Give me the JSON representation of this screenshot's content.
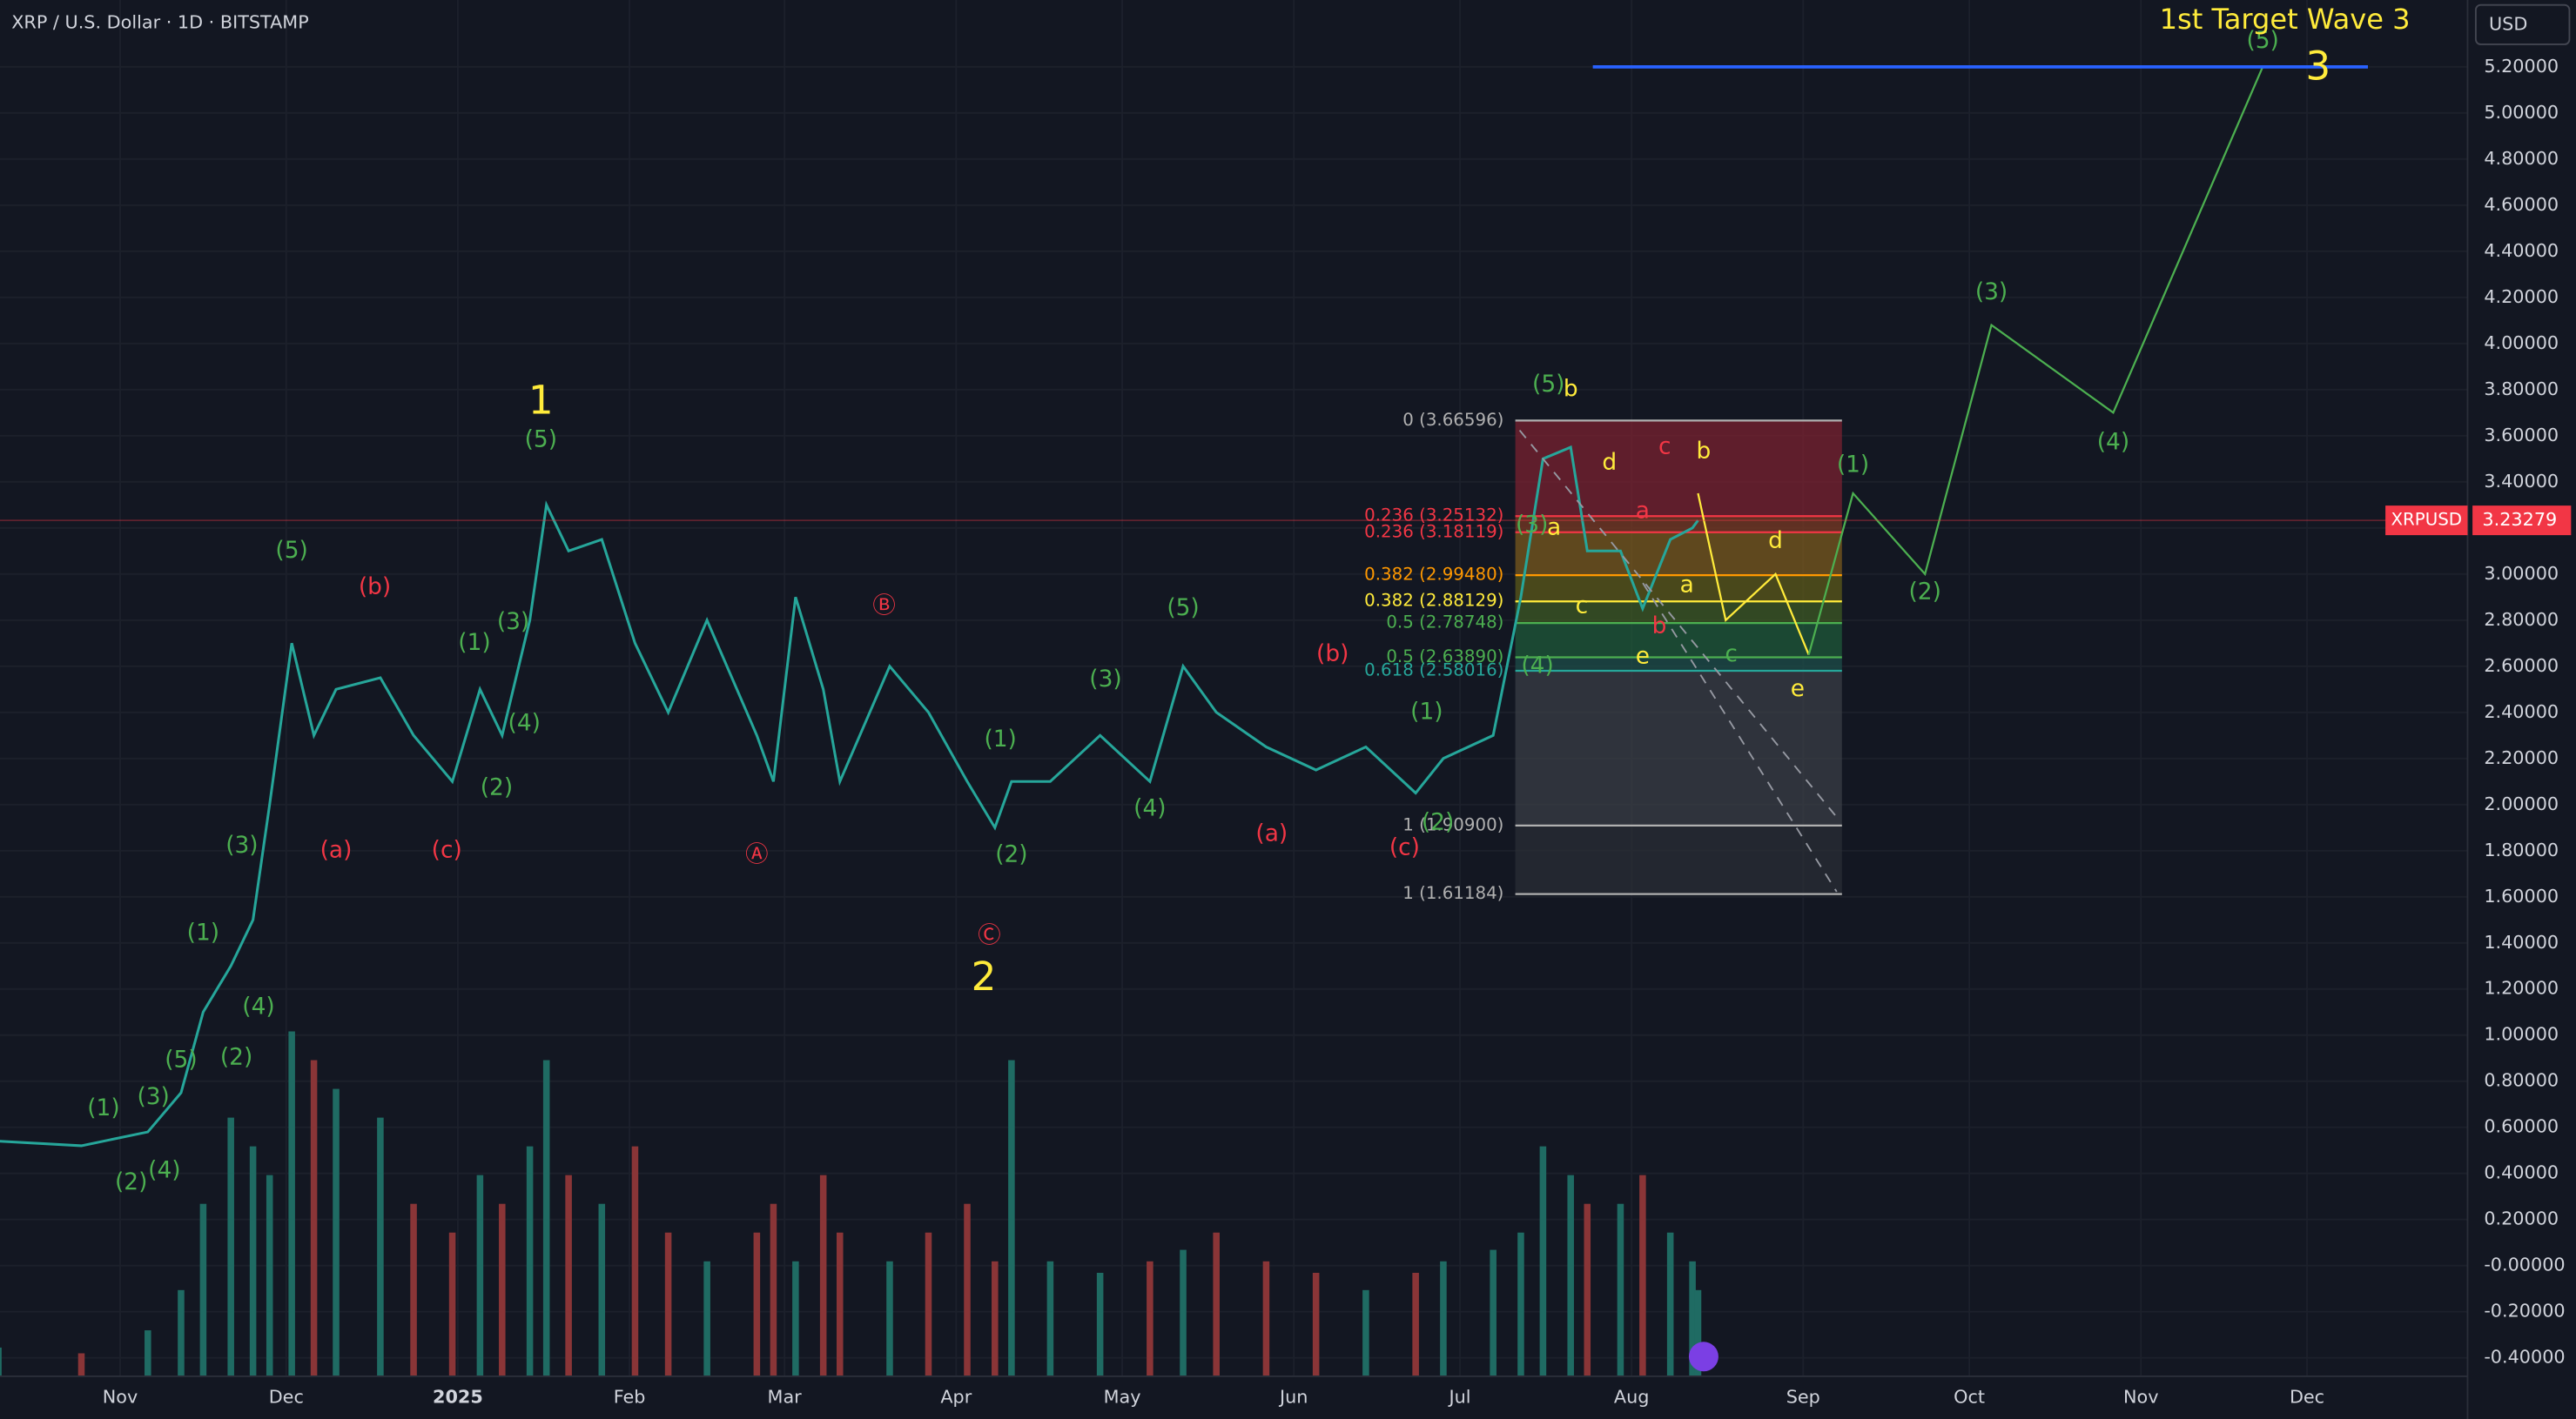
{
  "header": {
    "symbol_title": "XRP / U.S. Dollar · 1D · BITSTAMP",
    "currency_button": "USD"
  },
  "chart_data": {
    "type": "line",
    "symbol": "XRPUSD",
    "last_price": 3.23279,
    "color": "#26a69a",
    "x": [
      9,
      24,
      36,
      42,
      46,
      51,
      55,
      58,
      62,
      66,
      70,
      78,
      84,
      91,
      96,
      100,
      105,
      108,
      112,
      118,
      124,
      130,
      137,
      146,
      149,
      153,
      158,
      161,
      170,
      177,
      184,
      189,
      192,
      199,
      208,
      217,
      223,
      229,
      238,
      247,
      256,
      265,
      270,
      279,
      284,
      288,
      293,
      296,
      302,
      306,
      311,
      315,
      316
    ],
    "series": [
      {
        "name": "XRPUSD",
        "color": "#26a69a",
        "values": [
          0.54,
          0.52,
          0.58,
          0.75,
          1.1,
          1.3,
          1.5,
          2.0,
          2.7,
          2.3,
          2.5,
          2.55,
          2.3,
          2.1,
          2.5,
          2.3,
          2.8,
          3.3,
          3.1,
          3.15,
          2.7,
          2.4,
          2.8,
          2.3,
          2.1,
          2.9,
          2.5,
          2.1,
          2.6,
          2.4,
          2.1,
          1.9,
          2.1,
          2.1,
          2.3,
          2.1,
          2.6,
          2.4,
          2.25,
          2.15,
          2.25,
          2.05,
          2.2,
          2.3,
          2.9,
          3.5,
          3.55,
          3.1,
          3.1,
          2.85,
          3.15,
          3.2,
          3.23279
        ]
      }
    ],
    "volume": {
      "up_color": "#1f6b63",
      "down_color": "#8a3537",
      "values": [
        5,
        4,
        8,
        15,
        30,
        45,
        40,
        35,
        60,
        55,
        50,
        45,
        30,
        25,
        35,
        30,
        40,
        55,
        35,
        30,
        40,
        25,
        20,
        25,
        30,
        20,
        35,
        25,
        20,
        25,
        30,
        20,
        55,
        20,
        18,
        20,
        22,
        25,
        20,
        18,
        15,
        18,
        20,
        22,
        25,
        40,
        35,
        30,
        30,
        35,
        25,
        20,
        15
      ]
    },
    "projections": [
      {
        "color": "#ffeb3b",
        "x": [
          316,
          321,
          330,
          336
        ],
        "values": [
          3.35,
          2.8,
          3.0,
          2.65
        ]
      },
      {
        "color": "#4caf50",
        "x": [
          336,
          344,
          357,
          369,
          391,
          418
        ],
        "values": [
          2.65,
          3.35,
          3.0,
          4.08,
          3.7,
          5.2
        ]
      }
    ],
    "target_line": {
      "color": "#2962ff",
      "x": [
        297,
        437
      ],
      "value": 5.2
    },
    "fib": {
      "x": [
        283,
        342
      ],
      "levels": [
        {
          "label": "0 (3.66596)",
          "value": 3.66596,
          "color": "#b0b0b0",
          "fill": "#7a2230"
        },
        {
          "label": "0.236 (3.25132)",
          "value": 3.25132,
          "color": "#f23645",
          "fill": "#7a3a24"
        },
        {
          "label": "0.236 (3.18119)",
          "value": 3.18119,
          "color": "#f23645",
          "fill": "#7a5a1e"
        },
        {
          "label": "0.382 (2.99480)",
          "value": 2.9948,
          "color": "#ff9800",
          "fill": "#5c5a1a"
        },
        {
          "label": "0.382 (2.88129)",
          "value": 2.88129,
          "color": "#ffeb3b",
          "fill": "#3e5a24"
        },
        {
          "label": "0.5 (2.78748)",
          "value": 2.78748,
          "color": "#4caf50",
          "fill": "#1f5a3a"
        },
        {
          "label": "0.5 (2.63890)",
          "value": 2.6389,
          "color": "#4caf50",
          "fill": "#1d4e4a"
        },
        {
          "label": "0.618 (2.58016)",
          "value": 2.58016,
          "color": "#26a69a",
          "fill": "#3a3d46"
        },
        {
          "label": "1 (1.90900)",
          "value": 1.909,
          "color": "#b0b0b0",
          "fill": "#2a2d36"
        },
        {
          "label": "1 (1.61184)",
          "value": 1.61184,
          "color": "#b0b0b0",
          "fill": null
        }
      ]
    },
    "annotations": [
      {
        "text": "(1)",
        "x": 28,
        "y": 0.68,
        "color": "#4caf50"
      },
      {
        "text": "(2)",
        "x": 33,
        "y": 0.36,
        "color": "#4caf50"
      },
      {
        "text": "(4)",
        "x": 39,
        "y": 0.41,
        "color": "#4caf50"
      },
      {
        "text": "(3)",
        "x": 37,
        "y": 0.73,
        "color": "#4caf50"
      },
      {
        "text": "(5)",
        "x": 42,
        "y": 0.89,
        "color": "#4caf50"
      },
      {
        "text": "(2)",
        "x": 52,
        "y": 0.9,
        "color": "#4caf50"
      },
      {
        "text": "(1)",
        "x": 46,
        "y": 1.44,
        "color": "#4caf50"
      },
      {
        "text": "(4)",
        "x": 56,
        "y": 1.12,
        "color": "#4caf50"
      },
      {
        "text": "(3)",
        "x": 53,
        "y": 1.82,
        "color": "#4caf50"
      },
      {
        "text": "(5)",
        "x": 62,
        "y": 3.1,
        "color": "#4caf50"
      },
      {
        "text": "(a)",
        "x": 70,
        "y": 1.8,
        "color": "#f23645"
      },
      {
        "text": "(b)",
        "x": 77,
        "y": 2.94,
        "color": "#f23645"
      },
      {
        "text": "(c)",
        "x": 90,
        "y": 1.8,
        "color": "#f23645"
      },
      {
        "text": "(2)",
        "x": 99,
        "y": 2.07,
        "color": "#4caf50"
      },
      {
        "text": "(1)",
        "x": 95,
        "y": 2.7,
        "color": "#4caf50"
      },
      {
        "text": "(3)",
        "x": 102,
        "y": 2.79,
        "color": "#4caf50"
      },
      {
        "text": "(4)",
        "x": 104,
        "y": 2.35,
        "color": "#4caf50"
      },
      {
        "text": "(5)",
        "x": 107,
        "y": 3.58,
        "color": "#4caf50"
      },
      {
        "text": "1",
        "x": 107,
        "y": 3.74,
        "color": "#ffeb3b",
        "large": true
      },
      {
        "text": "Ⓐ",
        "x": 146,
        "y": 1.78,
        "color": "#f23645"
      },
      {
        "text": "Ⓑ",
        "x": 169,
        "y": 2.86,
        "color": "#f23645"
      },
      {
        "text": "Ⓒ",
        "x": 188,
        "y": 1.43,
        "color": "#f23645"
      },
      {
        "text": "2",
        "x": 187,
        "y": 1.24,
        "color": "#ffeb3b",
        "large": true
      },
      {
        "text": "(1)",
        "x": 190,
        "y": 2.28,
        "color": "#4caf50"
      },
      {
        "text": "(2)",
        "x": 192,
        "y": 1.78,
        "color": "#4caf50"
      },
      {
        "text": "(3)",
        "x": 209,
        "y": 2.54,
        "color": "#4caf50"
      },
      {
        "text": "(4)",
        "x": 217,
        "y": 1.98,
        "color": "#4caf50"
      },
      {
        "text": "(5)",
        "x": 223,
        "y": 2.85,
        "color": "#4caf50"
      },
      {
        "text": "(a)",
        "x": 239,
        "y": 1.87,
        "color": "#f23645"
      },
      {
        "text": "(b)",
        "x": 250,
        "y": 2.65,
        "color": "#f23645"
      },
      {
        "text": "(c)",
        "x": 263,
        "y": 1.81,
        "color": "#f23645"
      },
      {
        "text": "(2)",
        "x": 269,
        "y": 1.92,
        "color": "#4caf50"
      },
      {
        "text": "(1)",
        "x": 267,
        "y": 2.4,
        "color": "#4caf50"
      },
      {
        "text": "(3)",
        "x": 286,
        "y": 3.21,
        "color": "#4caf50"
      },
      {
        "text": "(4)",
        "x": 287,
        "y": 2.6,
        "color": "#4caf50"
      },
      {
        "text": "(5)",
        "x": 289,
        "y": 3.82,
        "color": "#4caf50"
      },
      {
        "text": "b",
        "x": 293,
        "y": 3.8,
        "color": "#ffeb3b"
      },
      {
        "text": "a",
        "x": 290,
        "y": 3.2,
        "color": "#ffeb3b"
      },
      {
        "text": "d",
        "x": 300,
        "y": 3.48,
        "color": "#ffeb3b"
      },
      {
        "text": "c",
        "x": 295,
        "y": 2.86,
        "color": "#ffeb3b"
      },
      {
        "text": "a",
        "x": 306,
        "y": 3.27,
        "color": "#f23645"
      },
      {
        "text": "c",
        "x": 310,
        "y": 3.55,
        "color": "#f23645"
      },
      {
        "text": "b",
        "x": 317,
        "y": 3.53,
        "color": "#ffeb3b"
      },
      {
        "text": "a",
        "x": 314,
        "y": 2.95,
        "color": "#ffeb3b"
      },
      {
        "text": "b",
        "x": 309,
        "y": 2.77,
        "color": "#f23645"
      },
      {
        "text": "e",
        "x": 306,
        "y": 2.64,
        "color": "#ffeb3b"
      },
      {
        "text": "d",
        "x": 330,
        "y": 3.14,
        "color": "#ffeb3b"
      },
      {
        "text": "c",
        "x": 322,
        "y": 2.65,
        "color": "#4caf50"
      },
      {
        "text": "e",
        "x": 334,
        "y": 2.5,
        "color": "#ffeb3b"
      },
      {
        "text": "(1)",
        "x": 344,
        "y": 3.47,
        "color": "#4caf50"
      },
      {
        "text": "(2)",
        "x": 357,
        "y": 2.92,
        "color": "#4caf50"
      },
      {
        "text": "(3)",
        "x": 369,
        "y": 4.22,
        "color": "#4caf50"
      },
      {
        "text": "(4)",
        "x": 391,
        "y": 3.57,
        "color": "#4caf50"
      },
      {
        "text": "(5)",
        "x": 418,
        "y": 5.31,
        "color": "#4caf50"
      },
      {
        "text": "1st Target Wave 3",
        "x": 422,
        "y": 5.4,
        "color": "#ffeb3b"
      },
      {
        "text": "3",
        "x": 428,
        "y": 5.19,
        "color": "#ffeb3b",
        "large": true
      }
    ],
    "xlim": [
      9.3,
      455
    ],
    "ylim": [
      -0.48,
      5.49
    ],
    "grid": true,
    "xticks": [
      {
        "value": 31,
        "label": "Nov"
      },
      {
        "value": 61,
        "label": "Dec"
      },
      {
        "value": 92,
        "label": "2025"
      },
      {
        "value": 123,
        "label": "Feb"
      },
      {
        "value": 151,
        "label": "Mar"
      },
      {
        "value": 182,
        "label": "Apr"
      },
      {
        "value": 212,
        "label": "May"
      },
      {
        "value": 243,
        "label": "Jun"
      },
      {
        "value": 273,
        "label": "Jul"
      },
      {
        "value": 304,
        "label": "Aug"
      },
      {
        "value": 335,
        "label": "Sep"
      },
      {
        "value": 365,
        "label": "Oct"
      },
      {
        "value": 396,
        "label": "Nov"
      },
      {
        "value": 426,
        "label": "Dec"
      }
    ],
    "yticks": [
      {
        "value": 5.2,
        "label": "5.20000"
      },
      {
        "value": 5.0,
        "label": "5.00000"
      },
      {
        "value": 4.8,
        "label": "4.80000"
      },
      {
        "value": 4.6,
        "label": "4.60000"
      },
      {
        "value": 4.4,
        "label": "4.40000"
      },
      {
        "value": 4.2,
        "label": "4.20000"
      },
      {
        "value": 4.0,
        "label": "4.00000"
      },
      {
        "value": 3.8,
        "label": "3.80000"
      },
      {
        "value": 3.6,
        "label": "3.60000"
      },
      {
        "value": 3.4,
        "label": "3.40000"
      },
      {
        "value": 3.2,
        "label": "3.20000"
      },
      {
        "value": 3.0,
        "label": "3.00000"
      },
      {
        "value": 2.8,
        "label": "2.80000"
      },
      {
        "value": 2.6,
        "label": "2.60000"
      },
      {
        "value": 2.4,
        "label": "2.40000"
      },
      {
        "value": 2.2,
        "label": "2.20000"
      },
      {
        "value": 2.0,
        "label": "2.00000"
      },
      {
        "value": 1.8,
        "label": "1.80000"
      },
      {
        "value": 1.6,
        "label": "1.60000"
      },
      {
        "value": 1.4,
        "label": "1.40000"
      },
      {
        "value": 1.2,
        "label": "1.20000"
      },
      {
        "value": 1.0,
        "label": "1.00000"
      },
      {
        "value": 0.8,
        "label": "0.80000"
      },
      {
        "value": 0.6,
        "label": "0.60000"
      },
      {
        "value": 0.4,
        "label": "0.40000"
      },
      {
        "value": 0.2,
        "label": "0.20000"
      },
      {
        "value": 0,
        "label": "-0.00000"
      },
      {
        "value": -0.2,
        "label": "-0.20000"
      },
      {
        "value": -0.4,
        "label": "-0.40000"
      }
    ]
  }
}
